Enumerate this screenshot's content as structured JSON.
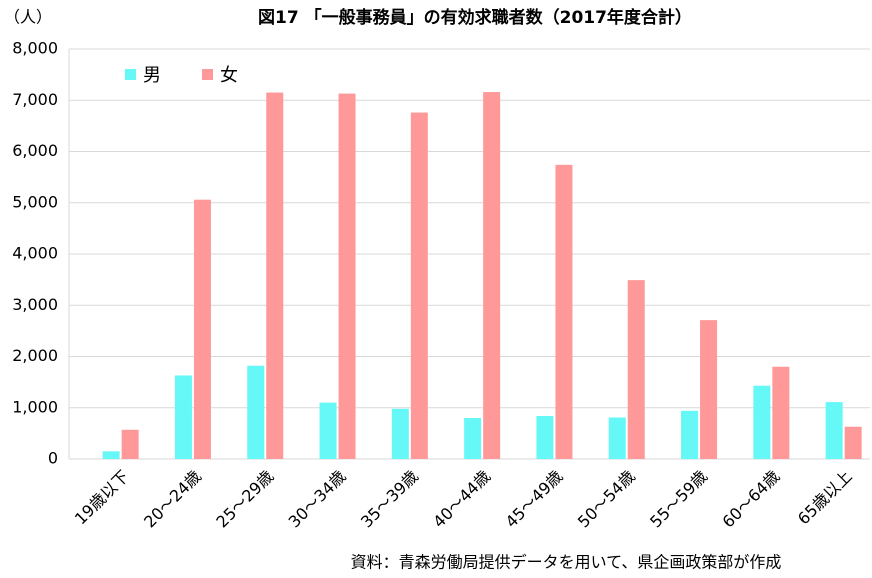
{
  "chart_data": {
    "type": "bar",
    "title": "図17 「一般事務員」の有効求職者数（2017年度合計）",
    "y_unit": "（人）",
    "source": "資料：青森労働局提供データを用いて、県企画政策部が作成",
    "categories": [
      "19歳以下",
      "20～24歳",
      "25～29歳",
      "30～34歳",
      "35～39歳",
      "40～44歳",
      "45～49歳",
      "50～54歳",
      "55～59歳",
      "60～64歳",
      "65歳以上"
    ],
    "series": [
      {
        "name": "男",
        "color": "#66f7f7",
        "values": [
          150,
          1630,
          1820,
          1100,
          980,
          800,
          840,
          810,
          940,
          1430,
          1110
        ]
      },
      {
        "name": "女",
        "color": "#ff9999",
        "values": [
          570,
          5060,
          7150,
          7130,
          6760,
          7160,
          5740,
          3490,
          2710,
          1800,
          630
        ]
      }
    ],
    "ylim": [
      0,
      8000
    ],
    "yticks": [
      0,
      {
        "value": 1000,
        "label": "1,000"
      },
      {
        "value": 2000,
        "label": "2,000"
      },
      {
        "value": 3000,
        "label": "3,000"
      },
      {
        "value": 4000,
        "label": "4,000"
      },
      {
        "value": 5000,
        "label": "5,000"
      },
      {
        "value": 6000,
        "label": "6,000"
      },
      {
        "value": 7000,
        "label": "7,000"
      },
      {
        "value": 8000,
        "label": "8,000"
      }
    ],
    "grid": true,
    "legend": "top-left"
  }
}
